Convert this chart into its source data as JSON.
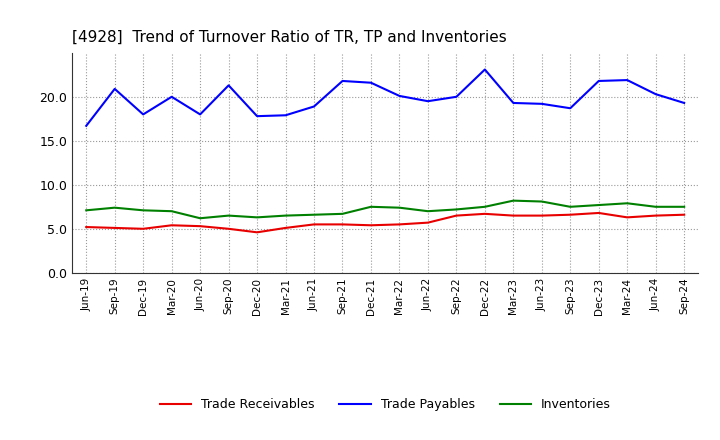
{
  "title": "[4928]  Trend of Turnover Ratio of TR, TP and Inventories",
  "x_labels": [
    "Jun-19",
    "Sep-19",
    "Dec-19",
    "Mar-20",
    "Jun-20",
    "Sep-20",
    "Dec-20",
    "Mar-21",
    "Jun-21",
    "Sep-21",
    "Dec-21",
    "Mar-22",
    "Jun-22",
    "Sep-22",
    "Dec-22",
    "Mar-23",
    "Jun-23",
    "Sep-23",
    "Dec-23",
    "Mar-24",
    "Jun-24",
    "Sep-24"
  ],
  "trade_receivables": [
    5.2,
    5.1,
    5.0,
    5.4,
    5.3,
    5.0,
    4.6,
    5.1,
    5.5,
    5.5,
    5.4,
    5.5,
    5.7,
    6.5,
    6.7,
    6.5,
    6.5,
    6.6,
    6.8,
    6.3,
    6.5,
    6.6
  ],
  "trade_payables": [
    16.7,
    20.9,
    18.0,
    20.0,
    18.0,
    21.3,
    17.8,
    17.9,
    18.9,
    21.8,
    21.6,
    20.1,
    19.5,
    20.0,
    23.1,
    19.3,
    19.2,
    18.7,
    21.8,
    21.9,
    20.3,
    19.3
  ],
  "inventories": [
    7.1,
    7.4,
    7.1,
    7.0,
    6.2,
    6.5,
    6.3,
    6.5,
    6.6,
    6.7,
    7.5,
    7.4,
    7.0,
    7.2,
    7.5,
    8.2,
    8.1,
    7.5,
    7.7,
    7.9,
    7.5,
    7.5
  ],
  "ylim": [
    0.0,
    25.0
  ],
  "yticks": [
    0.0,
    5.0,
    10.0,
    15.0,
    20.0
  ],
  "color_tr": "#e80000",
  "color_tp": "#0000ff",
  "color_inv": "#008000",
  "legend_tr": "Trade Receivables",
  "legend_tp": "Trade Payables",
  "legend_inv": "Inventories",
  "bg_color": "#ffffff",
  "grid_color": "#999999"
}
